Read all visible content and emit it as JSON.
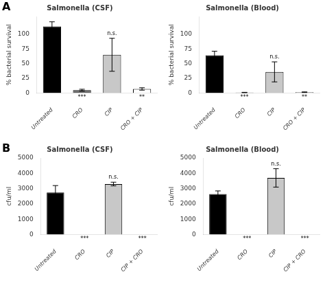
{
  "chart_data": [
    {
      "type": "bar",
      "panel_label": "A",
      "title": "Salmonella (CSF)",
      "ylabel": "% bacterial survival",
      "categories": [
        "Untreated",
        "CRO",
        "CIP",
        "CRO + CIP"
      ],
      "values": [
        113,
        5,
        65,
        7
      ],
      "errors": [
        8,
        1.5,
        28,
        2
      ],
      "colors": [
        "#000000",
        "#666666",
        "#c8c8c8",
        "#ffffff"
      ],
      "annotations": [
        {
          "x": "CRO",
          "text": "***",
          "above": false
        },
        {
          "x": "CIP",
          "text": "n.s.",
          "above": true
        },
        {
          "x": "CRO + CIP",
          "text": "**",
          "above": false
        }
      ],
      "ylim": [
        0,
        130
      ],
      "yticks": [
        0,
        25,
        50,
        75,
        100
      ],
      "grid": false
    },
    {
      "type": "bar",
      "title": "Salmonella (Blood)",
      "ylabel": "% bacterial survival",
      "categories": [
        "Untreated",
        "CRO",
        "CIP",
        "CRO + CIP"
      ],
      "values": [
        64,
        1,
        36,
        1.5
      ],
      "errors": [
        7,
        0.3,
        17,
        0.5
      ],
      "colors": [
        "#000000",
        "#666666",
        "#c8c8c8",
        "#ffffff"
      ],
      "annotations": [
        {
          "x": "CRO",
          "text": "***",
          "above": false
        },
        {
          "x": "CIP",
          "text": "n.s.",
          "above": true
        },
        {
          "x": "CRO + CIP",
          "text": "**",
          "above": false
        }
      ],
      "ylim": [
        0,
        130
      ],
      "yticks": [
        0,
        25,
        50,
        75,
        100
      ],
      "grid": false
    },
    {
      "type": "bar",
      "panel_label": "B",
      "title": "Salmonella (CSF)",
      "ylabel": "cfu/ml",
      "categories": [
        "Untreated",
        "CRO",
        "CIP",
        "CIP + CRO"
      ],
      "values": [
        2750,
        0,
        3300,
        0
      ],
      "errors": [
        450,
        0,
        120,
        0
      ],
      "colors": [
        "#000000",
        "#ffffff",
        "#c8c8c8",
        "#ffffff"
      ],
      "annotations": [
        {
          "x": "CRO",
          "text": "***",
          "above": false
        },
        {
          "x": "CIP",
          "text": "n.s.",
          "above": true
        },
        {
          "x": "CIP + CRO",
          "text": "***",
          "above": false
        }
      ],
      "ylim": [
        0,
        5000
      ],
      "yticks": [
        0,
        1000,
        2000,
        3000,
        4000,
        5000
      ],
      "grid": false
    },
    {
      "type": "bar",
      "title": "Salmonella (Blood)",
      "ylabel": "cfu/ml",
      "categories": [
        "Untreated",
        "CRO",
        "CIP",
        "CIP + CRO"
      ],
      "values": [
        2650,
        0,
        3700,
        0
      ],
      "errors": [
        200,
        0,
        600,
        0
      ],
      "colors": [
        "#000000",
        "#ffffff",
        "#c8c8c8",
        "#ffffff"
      ],
      "annotations": [
        {
          "x": "CRO",
          "text": "***",
          "above": false
        },
        {
          "x": "CIP",
          "text": "n.s.",
          "above": true
        },
        {
          "x": "CIP + CRO",
          "text": "***",
          "above": false
        }
      ],
      "ylim": [
        0,
        5000
      ],
      "yticks": [
        0,
        1000,
        2000,
        3000,
        4000,
        5000
      ],
      "grid": false
    }
  ]
}
